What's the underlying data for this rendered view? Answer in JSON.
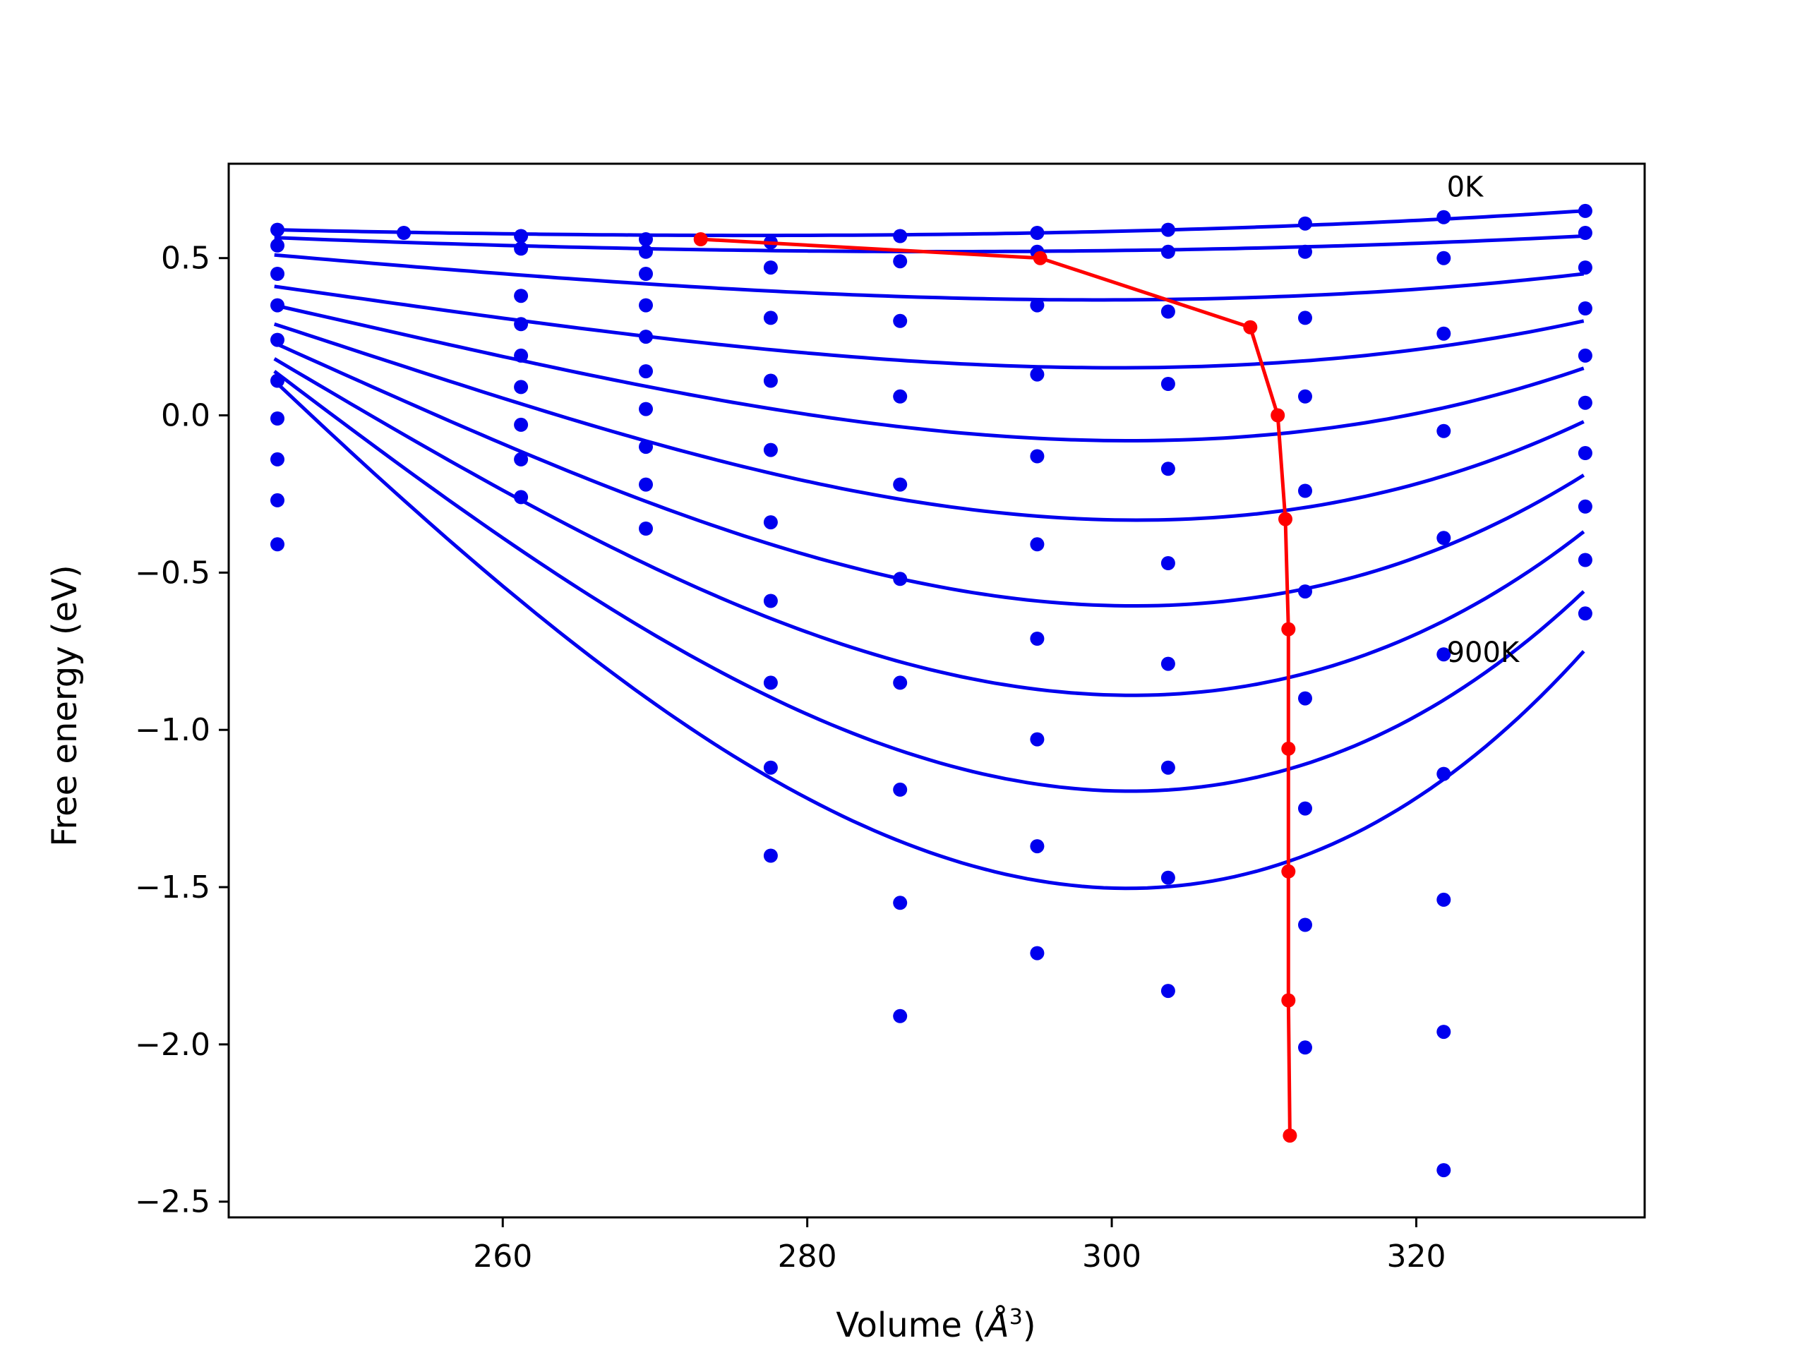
{
  "chart_data": {
    "type": "scatter",
    "title": "",
    "xlabel": "Volume (",
    "xlabel_unit": "Å",
    "xlabel_unit_exp": "3",
    "xlabel_close": ")",
    "ylabel": "Free energy (eV)",
    "xlim": [
      242,
      335
    ],
    "ylim": [
      -2.55,
      0.8
    ],
    "x_ticks": [
      260,
      280,
      300,
      320
    ],
    "y_ticks": [
      0.5,
      0.0,
      -0.5,
      -1.0,
      -1.5,
      -2.0,
      -2.5
    ],
    "x_tick_labels": [
      "260",
      "280",
      "300",
      "320"
    ],
    "y_tick_labels": [
      "0.5",
      "0.0",
      "−0.5",
      "−1.0",
      "−1.5",
      "−2.0",
      "−2.5"
    ],
    "grid": false,
    "colors": {
      "data": "#0000ee",
      "fit": "#0000ee",
      "minima": "#ff0000"
    },
    "annotations": [
      {
        "text": "0K",
        "x": 322,
        "y": 0.72
      },
      {
        "text": "900K",
        "x": 322,
        "y": -0.76
      }
    ],
    "fit_x_range": [
      245,
      331
    ],
    "series": [
      {
        "curve": [
          0.59,
          0.56,
          0.56,
          0.65
        ],
        "points": [
          [
            245.2,
            0.59
          ],
          [
            253.5,
            0.58
          ],
          [
            261.2,
            0.57
          ],
          [
            269.4,
            0.56
          ],
          [
            277.6,
            0.55
          ],
          [
            286.1,
            0.57
          ],
          [
            295.1,
            0.58
          ],
          [
            303.7,
            0.59
          ],
          [
            312.7,
            0.61
          ],
          [
            321.8,
            0.63
          ],
          [
            331.1,
            0.65
          ]
        ]
      },
      {
        "curve": [
          0.565,
          0.51,
          0.5,
          0.57
        ],
        "points": [
          [
            245.2,
            0.54
          ],
          [
            261.2,
            0.53
          ],
          [
            269.4,
            0.52
          ],
          [
            277.6,
            0.47
          ],
          [
            286.1,
            0.49
          ],
          [
            295.1,
            0.52
          ],
          [
            303.7,
            0.52
          ],
          [
            312.7,
            0.52
          ],
          [
            321.8,
            0.5
          ],
          [
            331.1,
            0.58
          ]
        ]
      },
      {
        "curve": [
          0.51,
          0.39,
          0.29,
          0.45
        ],
        "points": [
          [
            245.2,
            0.45
          ],
          [
            261.2,
            0.38
          ],
          [
            269.4,
            0.45
          ],
          [
            277.6,
            0.31
          ],
          [
            286.1,
            0.3
          ],
          [
            295.1,
            0.35
          ],
          [
            303.7,
            0.33
          ],
          [
            312.7,
            0.31
          ],
          [
            321.8,
            0.26
          ],
          [
            331.1,
            0.47
          ]
        ]
      },
      {
        "curve": [
          0.41,
          0.215,
          0.0,
          0.3
        ],
        "points": [
          [
            245.2,
            0.35
          ],
          [
            261.2,
            0.29
          ],
          [
            269.4,
            0.35
          ],
          [
            277.6,
            0.11
          ],
          [
            286.1,
            0.06
          ],
          [
            295.1,
            0.13
          ],
          [
            303.7,
            0.1
          ],
          [
            312.7,
            0.06
          ],
          [
            321.8,
            -0.05
          ],
          [
            331.1,
            0.34
          ]
        ]
      },
      {
        "curve": [
          0.35,
          0.04,
          -0.33,
          0.15
        ],
        "points": [
          [
            245.2,
            0.24
          ],
          [
            261.2,
            0.19
          ],
          [
            269.4,
            0.25
          ],
          [
            277.6,
            -0.11
          ],
          [
            286.1,
            -0.22
          ],
          [
            295.1,
            -0.13
          ],
          [
            303.7,
            -0.17
          ],
          [
            312.7,
            -0.24
          ],
          [
            321.8,
            -0.39
          ],
          [
            331.1,
            0.19
          ]
        ]
      },
      {
        "curve": [
          0.29,
          -0.16,
          -0.68,
          -0.02
        ],
        "points": [
          [
            245.2,
            0.11
          ],
          [
            261.2,
            0.09
          ],
          [
            269.4,
            0.14
          ],
          [
            277.6,
            -0.34
          ],
          [
            286.1,
            -0.52
          ],
          [
            295.1,
            -0.41
          ],
          [
            303.7,
            -0.47
          ],
          [
            312.7,
            -0.56
          ],
          [
            321.8,
            -0.76
          ],
          [
            331.1,
            0.04
          ]
        ]
      },
      {
        "curve": [
          0.23,
          -0.39,
          -1.06,
          -0.19
        ],
        "points": [
          [
            245.2,
            -0.01
          ],
          [
            261.2,
            -0.03
          ],
          [
            269.4,
            0.02
          ],
          [
            277.6,
            -0.59
          ],
          [
            286.1,
            -0.85
          ],
          [
            295.1,
            -0.71
          ],
          [
            303.7,
            -0.79
          ],
          [
            312.7,
            -0.9
          ],
          [
            321.8,
            -1.14
          ],
          [
            331.1,
            -0.12
          ]
        ]
      },
      {
        "curve": [
          0.18,
          -0.64,
          -1.45,
          -0.37
        ],
        "points": [
          [
            245.2,
            -0.14
          ],
          [
            261.2,
            -0.14
          ],
          [
            269.4,
            -0.1
          ],
          [
            277.6,
            -0.85
          ],
          [
            286.1,
            -1.19
          ],
          [
            295.1,
            -1.03
          ],
          [
            303.7,
            -1.12
          ],
          [
            312.7,
            -1.25
          ],
          [
            321.8,
            -1.54
          ],
          [
            331.1,
            -0.29
          ]
        ]
      },
      {
        "curve": [
          0.14,
          -0.91,
          -1.87,
          -0.56
        ],
        "points": [
          [
            245.2,
            -0.27
          ],
          [
            261.2,
            -0.26
          ],
          [
            269.4,
            -0.22
          ],
          [
            277.6,
            -1.12
          ],
          [
            286.1,
            -1.55
          ],
          [
            295.1,
            -1.37
          ],
          [
            303.7,
            -1.47
          ],
          [
            312.7,
            -1.62
          ],
          [
            321.8,
            -1.96
          ],
          [
            331.1,
            -0.46
          ]
        ]
      },
      {
        "curve": [
          0.11,
          -1.2,
          -2.29,
          -0.75
        ],
        "points": [
          [
            245.2,
            -0.41
          ],
          [
            269.4,
            -0.36
          ],
          [
            277.6,
            -1.4
          ],
          [
            286.1,
            -1.91
          ],
          [
            295.1,
            -1.71
          ],
          [
            303.7,
            -1.83
          ],
          [
            312.7,
            -2.01
          ],
          [
            321.8,
            -2.4
          ],
          [
            331.1,
            -0.63
          ]
        ]
      }
    ],
    "minima": {
      "x": [
        273.0,
        295.3,
        309.1,
        310.9,
        311.4,
        311.6,
        311.6,
        311.6,
        311.6,
        311.7
      ],
      "y": [
        0.56,
        0.5,
        0.28,
        0.0,
        -0.33,
        -0.68,
        -1.06,
        -1.45,
        -1.86,
        -2.29
      ]
    }
  }
}
